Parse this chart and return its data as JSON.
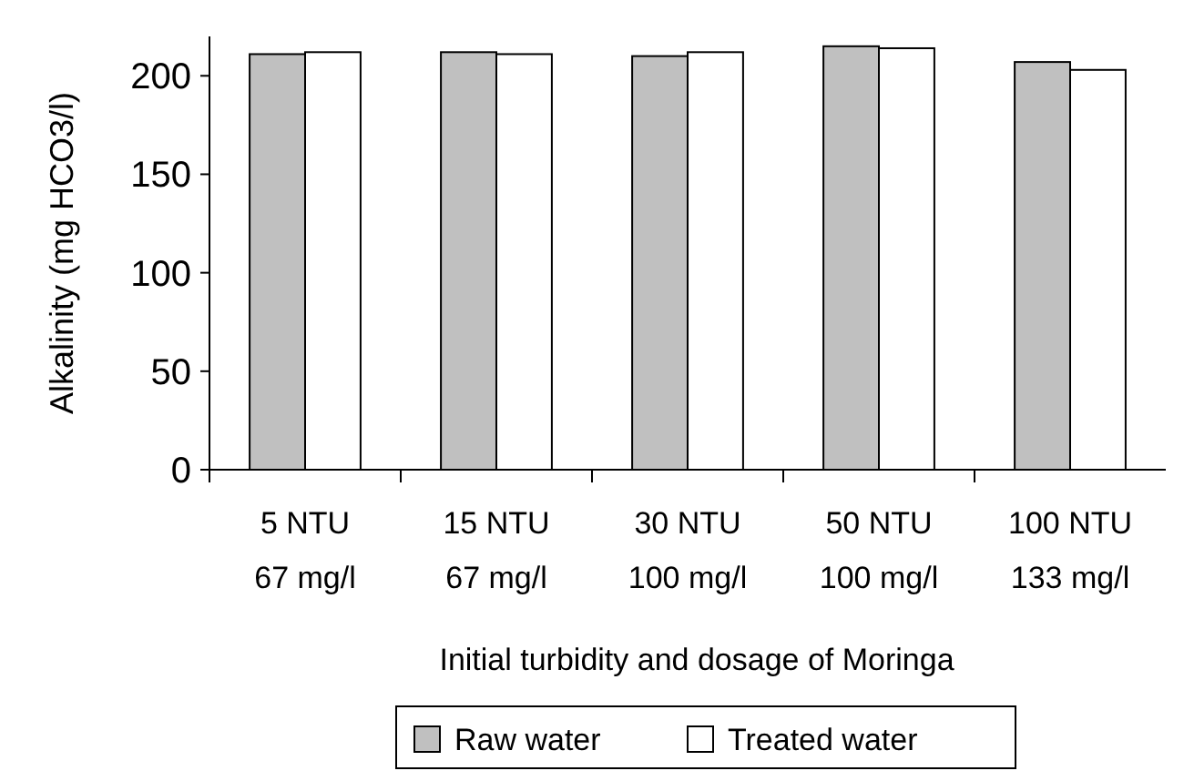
{
  "chart_data": {
    "type": "bar",
    "xlabel": "Initial turbidity and dosage of Moringa",
    "ylabel": "Alkalinity (mg HCO3/l)",
    "categories": [
      "5 NTU\n67 mg/l",
      "15 NTU\n67 mg/l",
      "30 NTU\n100 mg/l",
      "50 NTU\n100 mg/l",
      "100 NTU\n133 mg/l"
    ],
    "series": [
      {
        "name": "Raw water",
        "color": "#c0c0c0",
        "values": [
          211,
          212,
          210,
          215,
          207
        ]
      },
      {
        "name": "Treated water",
        "color": "#ffffff",
        "values": [
          212,
          211,
          212,
          214,
          203
        ]
      }
    ],
    "ylim": [
      0,
      220
    ],
    "yticks": [
      0,
      50,
      100,
      150,
      200
    ],
    "grid": false,
    "legend": "bottom"
  }
}
